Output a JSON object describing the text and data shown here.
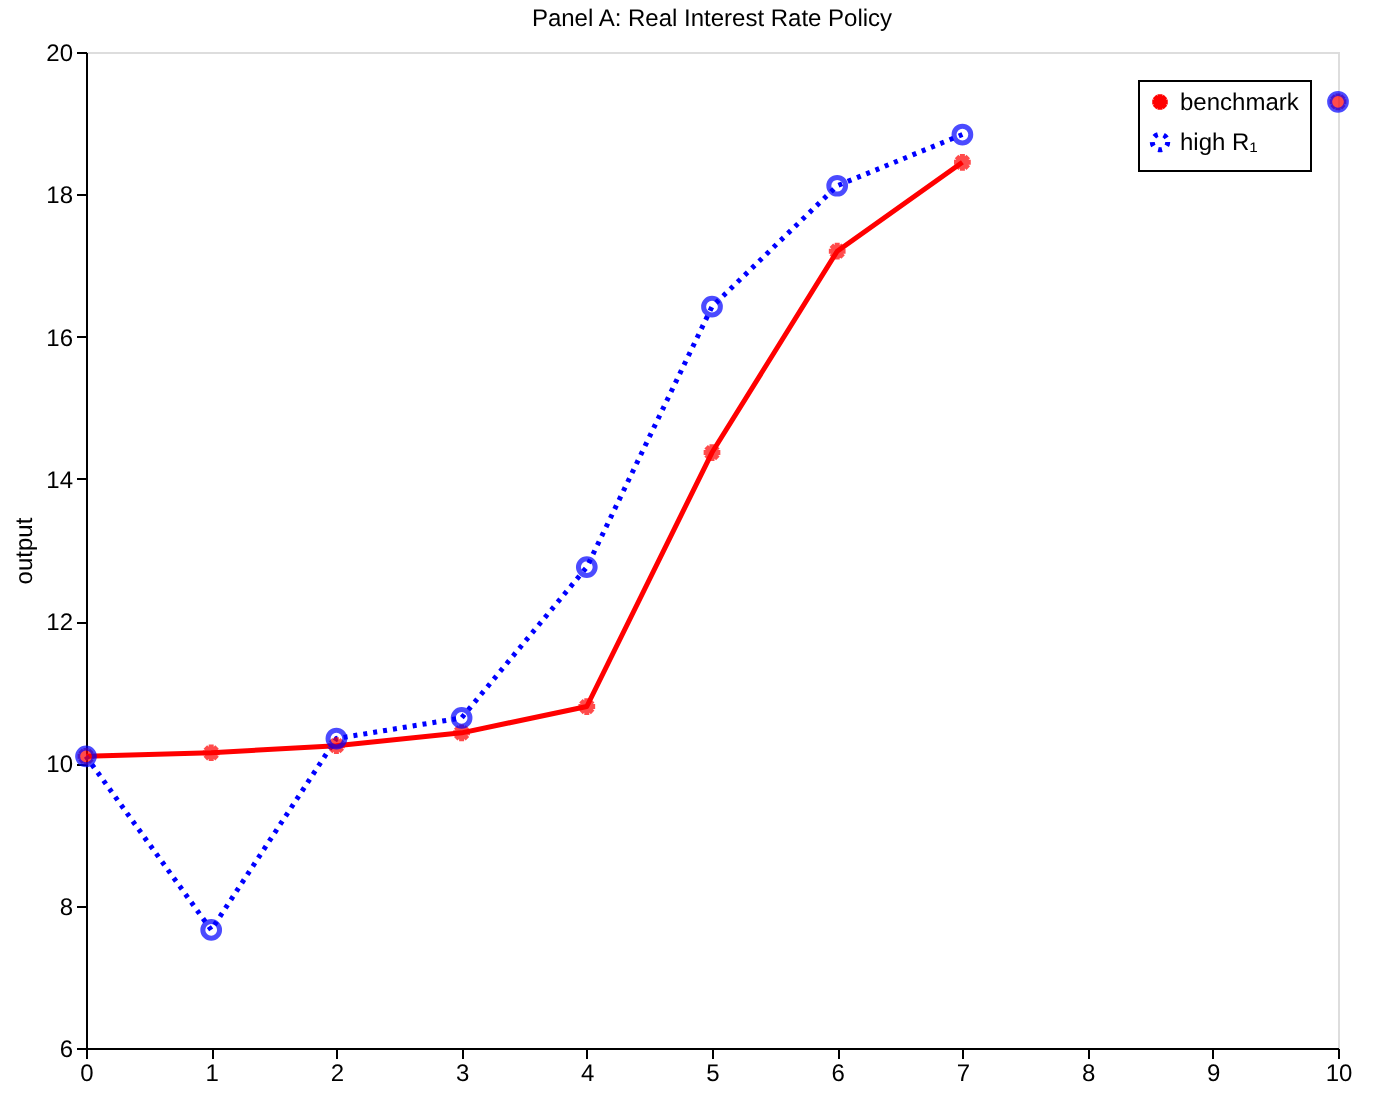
{
  "chart_data": {
    "type": "line",
    "title": "Panel A: Real Interest Rate Policy",
    "ylabel": "output",
    "x": [
      0,
      1,
      2,
      3,
      4,
      5,
      6,
      7,
      8,
      9,
      10
    ],
    "series": [
      {
        "name": "benchmark",
        "color": "#ff0000",
        "marker": "cross",
        "line_style": "solid",
        "values": [
          10.1,
          10.15,
          10.25,
          10.43,
          10.8,
          14.37,
          17.2,
          18.45,
          null,
          null,
          19.3
        ]
      },
      {
        "name": "high R₁",
        "color": "#0000ff",
        "marker": "circle",
        "line_style": "dotted",
        "values": [
          10.1,
          7.66,
          10.35,
          10.64,
          12.76,
          16.42,
          18.12,
          18.84,
          null,
          null,
          19.3
        ]
      }
    ],
    "xlim": [
      0,
      10
    ],
    "xticks": [
      0,
      1,
      2,
      3,
      4,
      5,
      6,
      7,
      8,
      9,
      10
    ],
    "ylim": [
      6,
      20
    ],
    "yticks": [
      6,
      8,
      10,
      12,
      14,
      16,
      18,
      20
    ],
    "grid": false,
    "legend": "top right"
  }
}
